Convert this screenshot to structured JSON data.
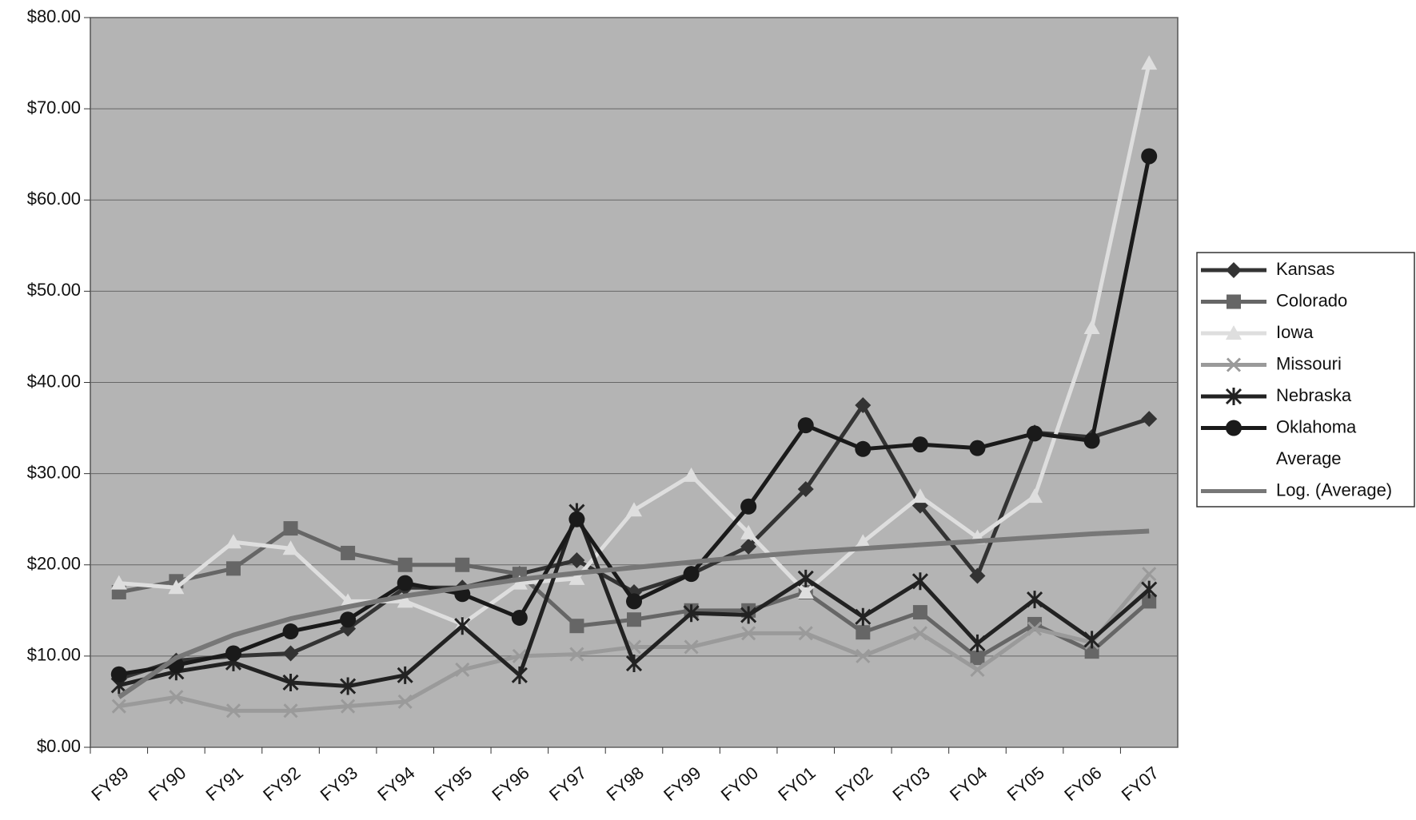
{
  "chart_data": {
    "type": "line",
    "categories": [
      "FY89",
      "FY90",
      "FY91",
      "FY92",
      "FY93",
      "FY94",
      "FY95",
      "FY96",
      "FY97",
      "FY98",
      "FY99",
      "FY00",
      "FY01",
      "FY02",
      "FY03",
      "FY04",
      "FY05",
      "FY06",
      "FY07"
    ],
    "ylim": [
      0,
      80
    ],
    "yticks": [
      {
        "value": 0,
        "label": "$0.00"
      },
      {
        "value": 10,
        "label": "$10.00"
      },
      {
        "value": 20,
        "label": "$20.00"
      },
      {
        "value": 30,
        "label": "$30.00"
      },
      {
        "value": 40,
        "label": "$40.00"
      },
      {
        "value": 50,
        "label": "$50.00"
      },
      {
        "value": 60,
        "label": "$60.00"
      },
      {
        "value": 70,
        "label": "$70.00"
      },
      {
        "value": 80,
        "label": "$80.00"
      }
    ],
    "grid": true,
    "legend": "right",
    "series": [
      {
        "name": "Kansas",
        "color": "#333333",
        "marker": "diamond",
        "values": [
          7.5,
          9.5,
          10,
          10.3,
          13,
          17.5,
          17.5,
          19,
          20.5,
          17,
          19,
          22,
          28.3,
          37.5,
          26.5,
          18.8,
          34.5,
          34,
          36
        ]
      },
      {
        "name": "Colorado",
        "color": "#666666",
        "marker": "square",
        "values": [
          17,
          18.2,
          19.6,
          24,
          21.3,
          20,
          20,
          19,
          13.3,
          14,
          15,
          15,
          17,
          12.6,
          14.8,
          9.8,
          13.5,
          10.5,
          16
        ]
      },
      {
        "name": "Iowa",
        "color": "#dedede",
        "marker": "triangle",
        "values": [
          18,
          17.5,
          22.5,
          21.8,
          16,
          16,
          13.5,
          18,
          18.5,
          26,
          29.8,
          23.5,
          17,
          22.5,
          27.5,
          23,
          27.5,
          46,
          75
        ]
      },
      {
        "name": "Missouri",
        "color": "#9a9a9a",
        "marker": "x",
        "values": [
          4.5,
          5.5,
          4,
          4,
          4.5,
          5,
          8.5,
          10,
          10.2,
          11,
          11,
          12.5,
          12.5,
          10,
          12.5,
          8.5,
          13,
          11.5,
          19
        ]
      },
      {
        "name": "Nebraska",
        "color": "#222222",
        "marker": "star",
        "values": [
          6.8,
          8.3,
          9.3,
          7.1,
          6.7,
          7.9,
          13.3,
          7.9,
          25.8,
          9.2,
          14.7,
          14.5,
          18.5,
          14.3,
          18.2,
          11.4,
          16.2,
          11.8,
          17.3
        ]
      },
      {
        "name": "Oklahoma",
        "color": "#1a1a1a",
        "marker": "circle",
        "values": [
          8,
          9,
          10.3,
          12.7,
          14,
          18,
          16.8,
          14.2,
          25,
          16,
          19,
          26.4,
          35.3,
          32.7,
          33.2,
          32.8,
          34.4,
          33.6,
          64.8
        ]
      },
      {
        "name": "Average",
        "color": null,
        "marker": null,
        "values": [
          null,
          null,
          null,
          null,
          null,
          null,
          null,
          null,
          null,
          null,
          null,
          null,
          null,
          null,
          null,
          null,
          null,
          null,
          null
        ]
      },
      {
        "name": "Log. (Average)",
        "color": "#777777",
        "marker": null,
        "values": [
          5.5,
          9.8,
          12.3,
          14.1,
          15.4,
          16.6,
          17.5,
          18.4,
          19.1,
          19.7,
          20.3,
          20.9,
          21.4,
          21.8,
          22.2,
          22.6,
          23.0,
          23.4,
          23.7
        ]
      }
    ]
  }
}
